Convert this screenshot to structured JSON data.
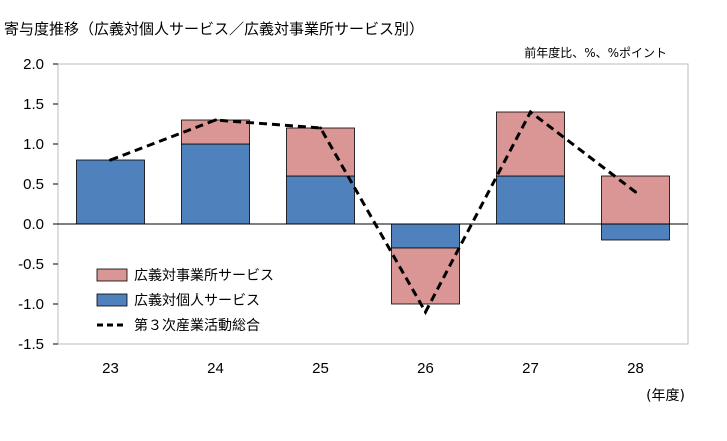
{
  "chart_data": {
    "type": "bar",
    "title": "寄与度推移（広義対個人サービス／広義対事業所サービス別）",
    "unit_label": "前年度比、%、%ポイント",
    "x_unit_label": "(年度)",
    "categories": [
      "23",
      "24",
      "25",
      "26",
      "27",
      "28"
    ],
    "y_ticks": [
      "2.0",
      "1.5",
      "1.0",
      "0.5",
      "0.0",
      "-0.5",
      "-1.0",
      "-1.5"
    ],
    "ylim": [
      -1.5,
      2.0
    ],
    "stacked": true,
    "series": [
      {
        "name": "広義対個人サービス",
        "type": "bar",
        "color": "#4F81BD",
        "values": [
          0.8,
          1.0,
          0.6,
          -0.3,
          0.6,
          -0.2
        ]
      },
      {
        "name": "広義対事業所サービス",
        "type": "bar",
        "color": "#D99694",
        "values": [
          0.0,
          0.3,
          0.6,
          -0.7,
          0.8,
          0.6
        ]
      },
      {
        "name": "第３次産業活動総合",
        "type": "line",
        "style": "dashed",
        "color": "#000000",
        "values": [
          0.8,
          1.3,
          1.2,
          -1.1,
          1.4,
          0.4
        ]
      }
    ],
    "legend_order": [
      "広義対事業所サービス",
      "広義対個人サービス",
      "第３次産業活動総合"
    ],
    "legend_position": "lower-left",
    "grid": false
  }
}
